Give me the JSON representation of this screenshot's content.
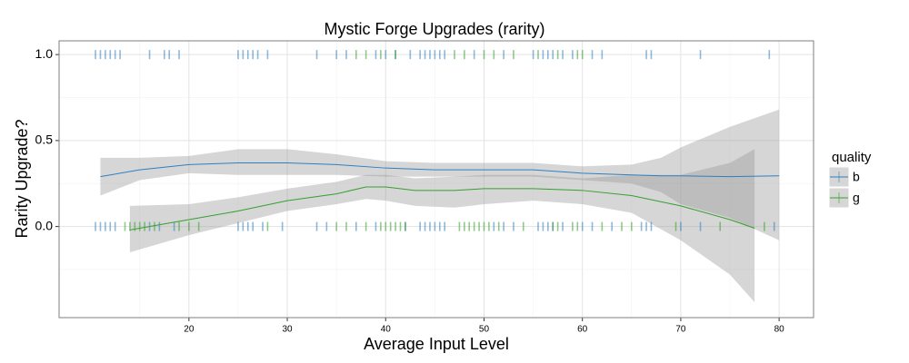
{
  "chart_data": {
    "type": "rug-smooth",
    "title": "Mystic Forge Upgrades (rarity)",
    "x_label": "Average Input Level",
    "y_label": "Rarity Upgrade?",
    "legend_title": "quality",
    "xlim": [
      6.8,
      83.5
    ],
    "ylim": [
      -0.53,
      1.08
    ],
    "xticks": [
      20,
      30,
      40,
      50,
      60,
      70,
      80
    ],
    "yticks": [
      {
        "value": 0,
        "label": "0.0"
      },
      {
        "value": 0.5,
        "label": "0.5"
      },
      {
        "value": 1,
        "label": "1.0"
      }
    ],
    "grid": true,
    "band_color": "#999999",
    "series": [
      {
        "name": "b",
        "color": "#2f7fbf",
        "x": [
          10.5,
          11,
          11.5,
          12,
          12.5,
          13,
          16,
          17.5,
          18,
          19,
          25,
          25.5,
          26,
          26.5,
          27,
          28,
          33,
          35,
          36,
          39,
          40,
          41,
          42.5,
          43.5,
          44,
          44.5,
          45,
          45.5,
          46,
          49,
          52,
          55,
          56,
          56.5,
          57,
          58,
          59,
          61,
          62,
          66.5,
          67,
          72,
          79,
          10.5,
          11,
          11.5,
          12,
          12.5,
          16,
          17,
          18.5,
          25,
          25.5,
          26,
          26.5,
          27.5,
          29.5,
          33,
          34,
          37,
          39,
          42,
          43.5,
          44,
          44.5,
          45,
          45.5,
          46,
          51,
          52,
          53,
          55.5,
          56,
          56.5,
          57,
          58,
          60,
          61,
          63,
          66,
          66.5,
          67,
          70,
          72,
          79.5
        ],
        "values": [
          1,
          1,
          1,
          1,
          1,
          1,
          1,
          1,
          1,
          1,
          1,
          1,
          1,
          1,
          1,
          1,
          1,
          1,
          1,
          1,
          1,
          1,
          1,
          1,
          1,
          1,
          1,
          1,
          1,
          1,
          1,
          1,
          1,
          1,
          1,
          1,
          1,
          1,
          1,
          1,
          1,
          1,
          1,
          0,
          0,
          0,
          0,
          0,
          0,
          0,
          0,
          0,
          0,
          0,
          0,
          0,
          0,
          0,
          0,
          0,
          0,
          0,
          0,
          0,
          0,
          0,
          0,
          0,
          0,
          0,
          0,
          0,
          0,
          0,
          0,
          0,
          0,
          0,
          0,
          0,
          0,
          0,
          0,
          0,
          0
        ],
        "smooth": {
          "x": [
            11,
            15,
            20,
            25,
            30,
            35,
            40,
            45,
            50,
            55,
            60,
            65,
            68,
            70,
            75,
            80
          ],
          "values": [
            0.29,
            0.33,
            0.36,
            0.37,
            0.37,
            0.36,
            0.34,
            0.33,
            0.33,
            0.33,
            0.31,
            0.3,
            0.295,
            0.295,
            0.29,
            0.295
          ],
          "lower": [
            0.18,
            0.27,
            0.31,
            0.3,
            0.3,
            0.3,
            0.29,
            0.29,
            0.29,
            0.29,
            0.27,
            0.25,
            0.2,
            0.13,
            0.05,
            -0.08
          ],
          "upper": [
            0.4,
            0.4,
            0.41,
            0.45,
            0.45,
            0.42,
            0.38,
            0.37,
            0.37,
            0.37,
            0.35,
            0.36,
            0.4,
            0.46,
            0.58,
            0.68
          ]
        }
      },
      {
        "name": "g",
        "color": "#35a02c",
        "x": [
          37,
          38,
          39.5,
          41,
          47,
          48,
          50,
          51,
          53,
          55.5,
          57.5,
          59.5,
          60,
          13.5,
          14,
          14.5,
          15,
          15.5,
          16.5,
          19,
          20,
          21,
          28,
          35,
          36,
          38,
          39.5,
          40,
          40.5,
          41,
          41.5,
          42,
          47.5,
          48,
          48.5,
          49,
          49.5,
          50,
          50.5,
          51.5,
          54,
          57,
          57.5,
          59,
          59.5,
          62,
          64,
          65,
          69.5,
          74,
          78.5
        ],
        "values": [
          1,
          1,
          1,
          1,
          1,
          1,
          1,
          1,
          1,
          1,
          1,
          1,
          1,
          0,
          0,
          0,
          0,
          0,
          0,
          0,
          0,
          0,
          0,
          0,
          0,
          0,
          0,
          0,
          0,
          0,
          0,
          0,
          0,
          0,
          0,
          0,
          0,
          0,
          0,
          0,
          0,
          0,
          0,
          0,
          0,
          0,
          0,
          0,
          0,
          0,
          0
        ],
        "smooth": {
          "x": [
            14,
            20,
            25,
            30,
            35,
            38,
            40,
            43,
            47,
            50,
            55,
            60,
            65,
            70,
            75,
            77.5
          ],
          "values": [
            -0.02,
            0.04,
            0.09,
            0.15,
            0.19,
            0.23,
            0.23,
            0.21,
            0.21,
            0.22,
            0.22,
            0.21,
            0.18,
            0.12,
            0.04,
            -0.01
          ],
          "lower": [
            -0.15,
            -0.05,
            0.02,
            0.09,
            0.13,
            0.16,
            0.15,
            0.12,
            0.11,
            0.13,
            0.15,
            0.13,
            0.08,
            -0.08,
            -0.28,
            -0.44
          ],
          "upper": [
            0.12,
            0.13,
            0.17,
            0.22,
            0.26,
            0.3,
            0.3,
            0.28,
            0.29,
            0.3,
            0.3,
            0.28,
            0.3,
            0.3,
            0.37,
            0.45
          ]
        }
      }
    ]
  }
}
